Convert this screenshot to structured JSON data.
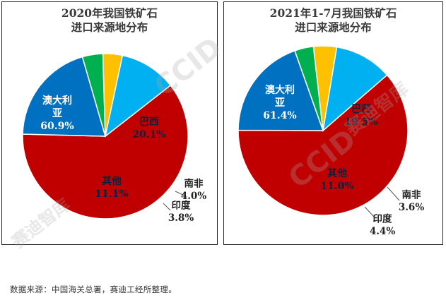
{
  "chart_data": [
    {
      "type": "pie",
      "title": "2020年我国铁矿石\n进口来源地分布",
      "title_lines": [
        "2020年我国铁矿石",
        "进口来源地分布"
      ],
      "slices": [
        {
          "label": "澳大利亚",
          "label_lines": [
            "澳大利",
            "亚"
          ],
          "value": 60.9,
          "value_label": "60.9%",
          "color": "#C00000"
        },
        {
          "label": "巴西",
          "label_lines": [
            "巴西"
          ],
          "value": 20.1,
          "value_label": "20.1%",
          "color": "#0070C0"
        },
        {
          "label": "南非",
          "label_lines": [
            "南非"
          ],
          "value": 4.0,
          "value_label": "4.0%",
          "color": "#00B050"
        },
        {
          "label": "印度",
          "label_lines": [
            "印度"
          ],
          "value": 3.8,
          "value_label": "3.8%",
          "color": "#FFC000"
        },
        {
          "label": "其他",
          "label_lines": [
            "其他"
          ],
          "value": 11.1,
          "value_label": "11.1%",
          "color": "#00B0F0"
        }
      ],
      "legend": "none"
    },
    {
      "type": "pie",
      "title": "2021年1-7月我国铁矿石\n进口来源地分布",
      "title_lines": [
        "2021年1-7月我国铁矿石",
        "进口来源地分布"
      ],
      "slices": [
        {
          "label": "澳大利亚",
          "label_lines": [
            "澳大利",
            "亚"
          ],
          "value": 61.4,
          "value_label": "61.4%",
          "color": "#C00000"
        },
        {
          "label": "巴西",
          "label_lines": [
            "巴西"
          ],
          "value": 19.5,
          "value_label": "19.5%",
          "color": "#0070C0"
        },
        {
          "label": "南非",
          "label_lines": [
            "南非"
          ],
          "value": 3.6,
          "value_label": "3.6%",
          "color": "#00B050"
        },
        {
          "label": "印度",
          "label_lines": [
            "印度"
          ],
          "value": 4.4,
          "value_label": "4.4%",
          "color": "#FFC000"
        },
        {
          "label": "其他",
          "label_lines": [
            "其他"
          ],
          "value": 11.0,
          "value_label": "11.0%",
          "color": "#00B0F0"
        }
      ],
      "legend": "none"
    }
  ],
  "footnote": "数据来源：中国海关总署，赛迪工经所整理。",
  "watermark": {
    "latin": "CCID",
    "cjk": "赛迪智库"
  }
}
